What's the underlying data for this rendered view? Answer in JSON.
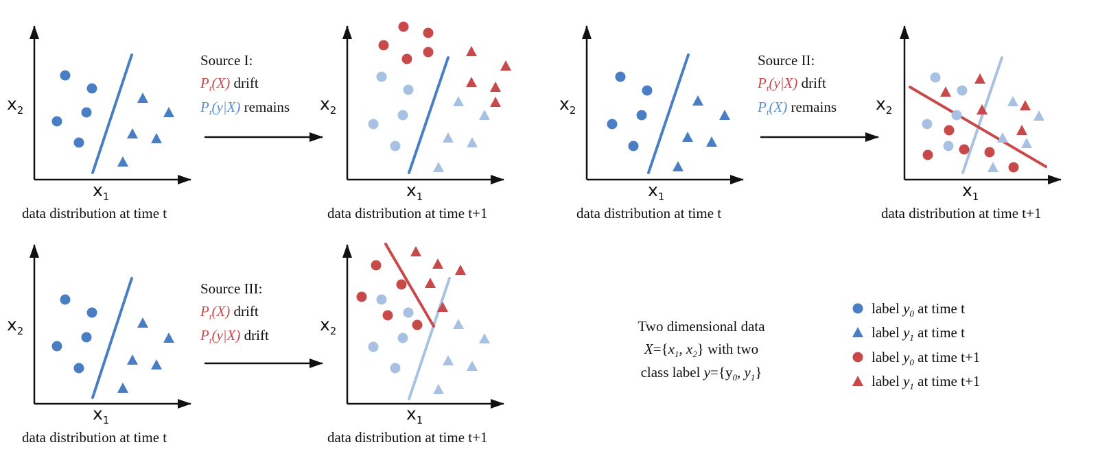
{
  "colors": {
    "blue": "#4a7ec3",
    "blue_text": "#5b8fcb",
    "light_blue": "#a8c1e2",
    "red": "#c8494a",
    "axis": "#111111"
  },
  "axis_labels": {
    "x": "x",
    "x_sub": "1",
    "y": "x",
    "y_sub": "2"
  },
  "captions": {
    "time_t": "data distribution at time t",
    "time_t1": "data distribution at time t+1"
  },
  "sources": [
    {
      "title": "Source I:",
      "line1_math": "P",
      "line1_sub": "t",
      "line1_arg": "(X)",
      "line1_word": " drift",
      "line2_math": "P",
      "line2_sub": "t",
      "line2_arg": "(y|X)",
      "line2_word": " remains"
    },
    {
      "title": "Source II:",
      "line1_math": "P",
      "line1_sub": "t",
      "line1_arg": "(y|X)",
      "line1_word": " drift",
      "line2_math": "P",
      "line2_sub": "t",
      "line2_arg": "(X)",
      "line2_word": " remains"
    },
    {
      "title": "Source III:",
      "line1_math": "P",
      "line1_sub": "t",
      "line1_arg": "(X)",
      "line1_word": " drift",
      "line2_math": "P",
      "line2_sub": "t",
      "line2_arg": "(y|X)",
      "line2_word": " drift"
    }
  ],
  "description": {
    "line1": "Two dimensional data",
    "line2_a": "X",
    "line2_b": "={",
    "line2_c": "x",
    "line2_c_sub": "1",
    "line2_d": ", ",
    "line2_e": "x",
    "line2_e_sub": "2",
    "line2_f": "} with two",
    "line3_a": "class label ",
    "line3_b": "y",
    "line3_c": "={y",
    "line3_c_sub": "0",
    "line3_d": ", ",
    "line3_e": "y",
    "line3_e_sub": "1",
    "line3_f": "}"
  },
  "legend": [
    {
      "shape": "circle",
      "color": "blue",
      "pre": "label ",
      "var": "y",
      "sub": "0",
      "post": " at time t"
    },
    {
      "shape": "triangle",
      "color": "blue",
      "pre": "label ",
      "var": "y",
      "sub": "1",
      "post": " at time t"
    },
    {
      "shape": "circle",
      "color": "red",
      "pre": "label ",
      "var": "y",
      "sub": "0",
      "post": " at time t+1"
    },
    {
      "shape": "triangle",
      "color": "red",
      "pre": "label ",
      "var": "y",
      "sub": "1",
      "post": " at time t+1"
    }
  ]
}
